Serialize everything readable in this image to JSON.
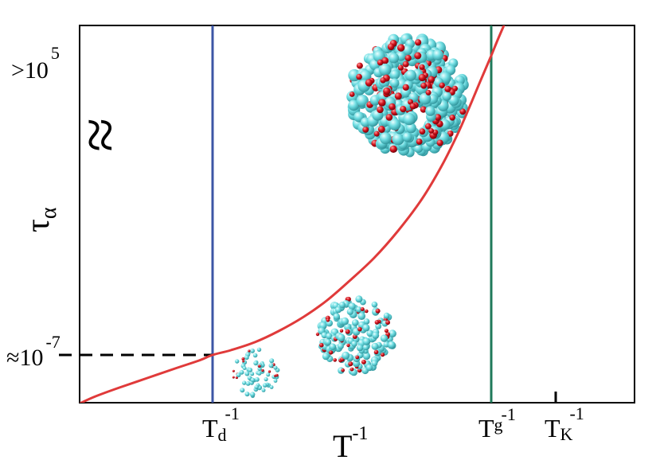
{
  "chart_data": {
    "type": "line",
    "title": "",
    "xlabel": "T",
    "xlabel_sup": "-1",
    "ylabel": "τ",
    "ylabel_sub": "α",
    "y_axis_break": "≈",
    "x_scale": "reciprocal temperature (T^-1)",
    "y_scale": "log",
    "grid": false,
    "y_ticks": [
      {
        "prefix": "≈10",
        "exp": "-7",
        "value": 1e-07
      },
      {
        "prefix": ">10",
        "exp": "5",
        "value": 100000
      }
    ],
    "x_ticks": [
      {
        "base": "T",
        "sub": "d",
        "sup": "-1",
        "id": "Td"
      },
      {
        "base": "T",
        "sub": "g",
        "sup": "-1",
        "id": "Tg"
      },
      {
        "base": "T",
        "sub": "K",
        "sup": "-1",
        "id": "TK"
      }
    ],
    "series": [
      {
        "color": "#e03a3a",
        "curve": "relaxation time τα rising from the dynamical crossover T_d^-1 to beyond the glass transition T_g^-1"
      }
    ],
    "markers": [
      {
        "id": "Td",
        "style": "vertical line",
        "color": "#3c56a5"
      },
      {
        "id": "Tg",
        "style": "vertical line",
        "color": "#1f7a5a"
      },
      {
        "id": "TK",
        "style": "tick",
        "color": "#000000"
      }
    ],
    "reference_lines": [
      {
        "style": "dashed horizontal",
        "at": "≈10^-7",
        "color": "#000000"
      }
    ],
    "illustrations": [
      {
        "name": "small cluster",
        "size": "small",
        "colors": [
          "#5fd3d8",
          "#d0111b"
        ]
      },
      {
        "name": "medium cluster",
        "size": "medium",
        "colors": [
          "#5fd3d8",
          "#d0111b"
        ]
      },
      {
        "name": "large cluster",
        "size": "large",
        "colors": [
          "#5fd3d8",
          "#d0111b"
        ]
      }
    ]
  }
}
